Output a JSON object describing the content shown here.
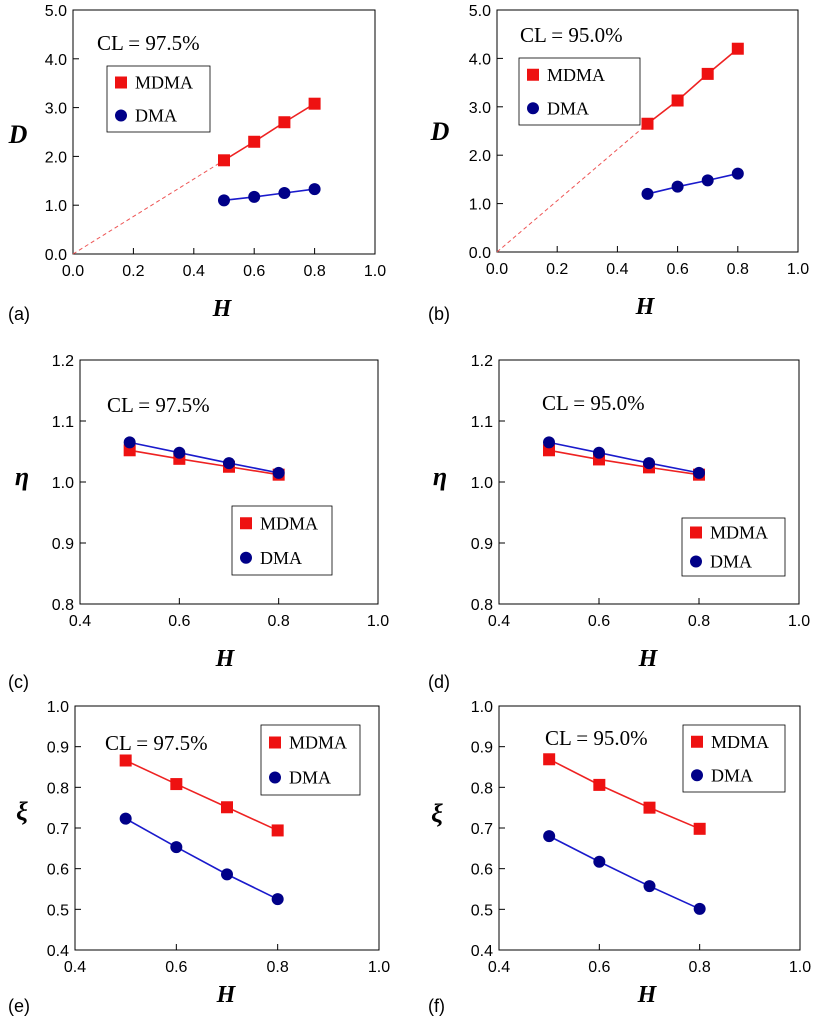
{
  "colors": {
    "mdma": "#ee1111",
    "dma": "#000088",
    "mdma_line": "#ee2222",
    "dma_line": "#1a1acc",
    "dashed": "#ee5555"
  },
  "chart_data": [
    {
      "id": "a",
      "type": "line",
      "panel_label": "(a)",
      "xlabel": "H",
      "ylabel": "D",
      "annotation": "CL = 97.5%",
      "xlim": [
        0.0,
        1.0
      ],
      "ylim": [
        0.0,
        5.0
      ],
      "xticks": [
        "0.0",
        "0.2",
        "0.4",
        "0.6",
        "0.8",
        "1.0"
      ],
      "yticks": [
        "0.0",
        "1.0",
        "2.0",
        "3.0",
        "4.0",
        "5.0"
      ],
      "legend_position": "top-left",
      "dashed_extrapolation": true,
      "x": [
        0.5,
        0.6,
        0.7,
        0.8
      ],
      "series": [
        {
          "name": "MDMA",
          "marker": "square",
          "values": [
            1.92,
            2.3,
            2.7,
            3.08
          ]
        },
        {
          "name": "DMA",
          "marker": "circle",
          "values": [
            1.1,
            1.17,
            1.25,
            1.33
          ]
        }
      ]
    },
    {
      "id": "b",
      "type": "line",
      "panel_label": "(b)",
      "xlabel": "H",
      "ylabel": "D",
      "annotation": "CL = 95.0%",
      "xlim": [
        0.0,
        1.0
      ],
      "ylim": [
        0.0,
        5.0
      ],
      "xticks": [
        "0.0",
        "0.2",
        "0.4",
        "0.6",
        "0.8",
        "1.0"
      ],
      "yticks": [
        "0.0",
        "1.0",
        "2.0",
        "3.0",
        "4.0",
        "5.0"
      ],
      "legend_position": "top-left",
      "dashed_extrapolation": true,
      "x": [
        0.5,
        0.6,
        0.7,
        0.8
      ],
      "series": [
        {
          "name": "MDMA",
          "marker": "square",
          "values": [
            2.65,
            3.13,
            3.68,
            4.2
          ]
        },
        {
          "name": "DMA",
          "marker": "circle",
          "values": [
            1.2,
            1.35,
            1.48,
            1.62
          ]
        }
      ]
    },
    {
      "id": "c",
      "type": "line",
      "panel_label": "(c)",
      "xlabel": "H",
      "ylabel": "η",
      "annotation": "CL = 97.5%",
      "xlim": [
        0.4,
        1.0
      ],
      "ylim": [
        0.8,
        1.2
      ],
      "xticks": [
        "0.4",
        "0.6",
        "0.8",
        "1.0"
      ],
      "yticks": [
        "0.8",
        "0.9",
        "1.0",
        "1.1",
        "1.2"
      ],
      "legend_position": "bottom-right",
      "dashed_extrapolation": false,
      "x": [
        0.5,
        0.6,
        0.7,
        0.8
      ],
      "series": [
        {
          "name": "MDMA",
          "marker": "square",
          "values": [
            1.052,
            1.038,
            1.025,
            1.012
          ]
        },
        {
          "name": "DMA",
          "marker": "circle",
          "values": [
            1.065,
            1.048,
            1.031,
            1.015
          ]
        }
      ]
    },
    {
      "id": "d",
      "type": "line",
      "panel_label": "(d)",
      "xlabel": "H",
      "ylabel": "η",
      "annotation": "CL = 95.0%",
      "xlim": [
        0.4,
        1.0
      ],
      "ylim": [
        0.8,
        1.2
      ],
      "xticks": [
        "0.4",
        "0.6",
        "0.8",
        "1.0"
      ],
      "yticks": [
        "0.8",
        "0.9",
        "1.0",
        "1.1",
        "1.2"
      ],
      "legend_position": "bottom-right",
      "dashed_extrapolation": false,
      "x": [
        0.5,
        0.6,
        0.7,
        0.8
      ],
      "series": [
        {
          "name": "MDMA",
          "marker": "square",
          "values": [
            1.052,
            1.037,
            1.024,
            1.012
          ]
        },
        {
          "name": "DMA",
          "marker": "circle",
          "values": [
            1.065,
            1.048,
            1.031,
            1.015
          ]
        }
      ]
    },
    {
      "id": "e",
      "type": "line",
      "panel_label": "(e)",
      "xlabel": "H",
      "ylabel": "ξ",
      "annotation": "CL = 97.5%",
      "xlim": [
        0.4,
        1.0
      ],
      "ylim": [
        0.4,
        1.0
      ],
      "xticks": [
        "0.4",
        "0.6",
        "0.8",
        "1.0"
      ],
      "yticks": [
        "0.4",
        "0.5",
        "0.6",
        "0.7",
        "0.8",
        "0.9",
        "1.0"
      ],
      "legend_position": "top-right",
      "dashed_extrapolation": false,
      "x": [
        0.5,
        0.6,
        0.7,
        0.8
      ],
      "series": [
        {
          "name": "MDMA",
          "marker": "square",
          "values": [
            0.866,
            0.808,
            0.751,
            0.694
          ]
        },
        {
          "name": "DMA",
          "marker": "circle",
          "values": [
            0.723,
            0.653,
            0.586,
            0.525
          ]
        }
      ]
    },
    {
      "id": "f",
      "type": "line",
      "panel_label": "(f)",
      "xlabel": "H",
      "ylabel": "ξ",
      "annotation": "CL = 95.0%",
      "xlim": [
        0.4,
        1.0
      ],
      "ylim": [
        0.4,
        1.0
      ],
      "xticks": [
        "0.4",
        "0.6",
        "0.8",
        "1.0"
      ],
      "yticks": [
        "0.4",
        "0.5",
        "0.6",
        "0.7",
        "0.8",
        "0.9",
        "1.0"
      ],
      "legend_position": "top-right",
      "dashed_extrapolation": false,
      "x": [
        0.5,
        0.6,
        0.7,
        0.8
      ],
      "series": [
        {
          "name": "MDMA",
          "marker": "square",
          "values": [
            0.869,
            0.806,
            0.75,
            0.698
          ]
        },
        {
          "name": "DMA",
          "marker": "circle",
          "values": [
            0.68,
            0.617,
            0.557,
            0.501
          ]
        }
      ]
    }
  ]
}
